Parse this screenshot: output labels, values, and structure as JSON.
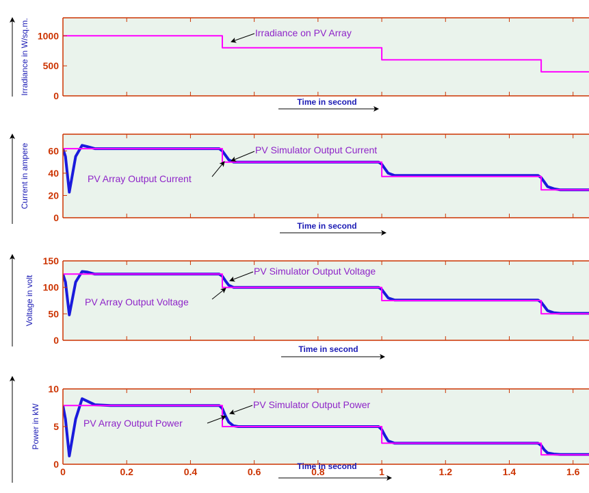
{
  "chart_data": [
    {
      "type": "line",
      "ylabel": "Irradiance in W/sq.m.",
      "xlabel": "Time in second",
      "xlim": [
        0,
        1.65
      ],
      "ylim": [
        0,
        1300
      ],
      "yticks": [
        0,
        500,
        1000
      ],
      "ytick_labels": [
        "0",
        "500",
        "1000"
      ],
      "xticks": [
        0,
        0.2,
        0.4,
        0.6,
        0.8,
        1.0,
        1.2,
        1.4,
        1.6
      ],
      "xtick_labels": [],
      "series": [
        {
          "color": "#ff00ff",
          "x": [
            0,
            0.5,
            0.5,
            1.0,
            1.0,
            1.5,
            1.5,
            1.65
          ],
          "y": [
            1000,
            1000,
            800,
            800,
            600,
            600,
            400,
            400
          ]
        }
      ],
      "annotations": [
        {
          "text": "Irradiance on PV Array",
          "x": 0.52,
          "y": 800
        }
      ]
    },
    {
      "type": "line",
      "ylabel": "Current in ampere",
      "xlabel": "Time in second",
      "xlim": [
        0,
        1.65
      ],
      "ylim": [
        0,
        75
      ],
      "yticks": [
        0,
        20,
        40,
        60
      ],
      "ytick_labels": [
        "0",
        "20",
        "40",
        "60"
      ],
      "xticks": [
        0,
        0.2,
        0.4,
        0.6,
        0.8,
        1.0,
        1.2,
        1.4,
        1.6
      ],
      "xtick_labels": [],
      "series": [
        {
          "color": "#ff00ff",
          "x": [
            0,
            0.5,
            0.5,
            1.0,
            1.0,
            1.5,
            1.5,
            1.65
          ],
          "y": [
            62,
            62,
            50,
            50,
            37,
            37,
            25,
            25
          ]
        },
        {
          "color": "#1a1adc",
          "x": [
            0,
            0.008,
            0.02,
            0.04,
            0.06,
            0.075,
            0.1,
            0.15,
            0.49,
            0.5,
            0.51,
            0.52,
            0.535,
            0.55,
            0.99,
            1.0,
            1.01,
            1.02,
            1.04,
            1.05,
            1.49,
            1.5,
            1.51,
            1.52,
            1.54,
            1.56,
            1.65
          ],
          "y": [
            62,
            55,
            23,
            55,
            65,
            64,
            62,
            62,
            62,
            60,
            56,
            52,
            50,
            50,
            50,
            48,
            44,
            40,
            38,
            38,
            38,
            36,
            32,
            28,
            26,
            25,
            25
          ]
        }
      ],
      "annotations": [
        {
          "text": "PV Simulator Output Current",
          "x": 0.525,
          "y": 58
        },
        {
          "text": "PV Array Output Current",
          "x": 0.49,
          "y": 52
        }
      ]
    },
    {
      "type": "line",
      "ylabel": "Voltage in volt",
      "xlabel": "Time in second",
      "xlim": [
        0,
        1.65
      ],
      "ylim": [
        0,
        150
      ],
      "yticks": [
        0,
        50,
        100,
        150
      ],
      "ytick_labels": [
        "0",
        "50",
        "100",
        "150"
      ],
      "xticks": [
        0,
        0.2,
        0.4,
        0.6,
        0.8,
        1.0,
        1.2,
        1.4,
        1.6
      ],
      "xtick_labels": [],
      "series": [
        {
          "color": "#ff00ff",
          "x": [
            0,
            0.5,
            0.5,
            1.0,
            1.0,
            1.5,
            1.5,
            1.65
          ],
          "y": [
            125,
            125,
            100,
            100,
            75,
            75,
            50,
            50
          ]
        },
        {
          "color": "#1a1adc",
          "x": [
            0,
            0.008,
            0.02,
            0.04,
            0.06,
            0.075,
            0.1,
            0.15,
            0.49,
            0.5,
            0.51,
            0.52,
            0.535,
            0.55,
            0.99,
            1.0,
            1.01,
            1.02,
            1.04,
            1.05,
            1.49,
            1.5,
            1.51,
            1.52,
            1.54,
            1.56,
            1.65
          ],
          "y": [
            125,
            110,
            48,
            110,
            130,
            129,
            125,
            125,
            125,
            121,
            112,
            104,
            100,
            100,
            100,
            96,
            88,
            80,
            76,
            76,
            76,
            72,
            64,
            56,
            52,
            51,
            51
          ]
        }
      ],
      "annotations": [
        {
          "text": "PV Simulator Output Voltage",
          "x": 0.525,
          "y": 117
        },
        {
          "text": "PV Array Output Voltage",
          "x": 0.49,
          "y": 104
        }
      ]
    },
    {
      "type": "line",
      "ylabel": "Power in kW",
      "xlabel": "Time in second",
      "xlim": [
        0,
        1.65
      ],
      "ylim": [
        0,
        10
      ],
      "yticks": [
        0,
        5,
        10
      ],
      "ytick_labels": [
        "0",
        "5",
        "10"
      ],
      "xticks": [
        0,
        0.2,
        0.4,
        0.6,
        0.8,
        1.0,
        1.2,
        1.4,
        1.6
      ],
      "xtick_labels": [
        "0",
        "0.2",
        "0.4",
        "0.6",
        "0.8",
        "1",
        "1.2",
        "1.4",
        "1.6"
      ],
      "series": [
        {
          "color": "#ff00ff",
          "x": [
            0,
            0.5,
            0.5,
            1.0,
            1.0,
            1.5,
            1.5,
            1.65
          ],
          "y": [
            7.8,
            7.8,
            5.0,
            5.0,
            2.8,
            2.8,
            1.25,
            1.25
          ]
        },
        {
          "color": "#1a1adc",
          "x": [
            0,
            0.008,
            0.02,
            0.04,
            0.06,
            0.075,
            0.1,
            0.15,
            0.49,
            0.5,
            0.51,
            0.52,
            0.535,
            0.55,
            0.99,
            1.0,
            1.01,
            1.02,
            1.04,
            1.05,
            1.49,
            1.5,
            1.51,
            1.52,
            1.54,
            1.56,
            1.65
          ],
          "y": [
            7.8,
            6,
            1.1,
            6,
            8.7,
            8.4,
            7.9,
            7.8,
            7.8,
            7.4,
            6.4,
            5.6,
            5.1,
            5.0,
            5.0,
            4.6,
            3.8,
            3.1,
            2.8,
            2.8,
            2.8,
            2.5,
            1.9,
            1.5,
            1.35,
            1.3,
            1.3
          ]
        }
      ],
      "annotations": [
        {
          "text": "PV Simulator Output Power",
          "x": 0.525,
          "y": 7.2
        },
        {
          "text": "PV Array Output Power",
          "x": 0.49,
          "y": 5.7
        }
      ]
    }
  ]
}
